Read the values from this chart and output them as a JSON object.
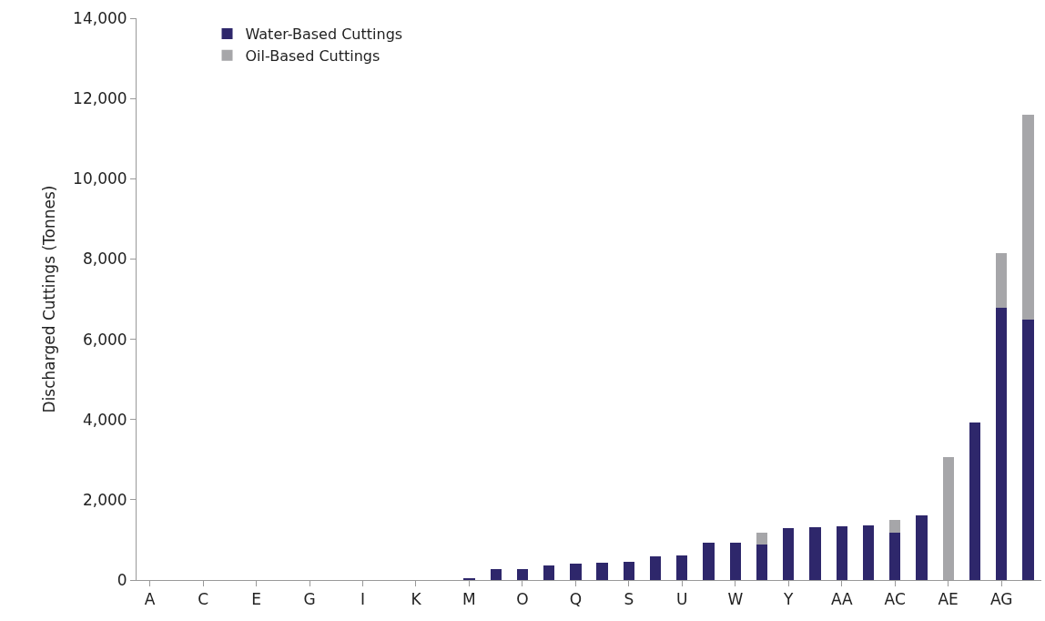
{
  "chart_data": {
    "type": "bar",
    "stacked": true,
    "ylabel": "Discharged Cuttings (Tonnes)",
    "categories": [
      "A",
      null,
      "C",
      null,
      "E",
      null,
      "G",
      null,
      "I",
      null,
      "K",
      null,
      "M",
      null,
      "O",
      null,
      "Q",
      null,
      "S",
      null,
      "U",
      null,
      "W",
      null,
      "Y",
      null,
      "AA",
      null,
      "AC",
      null,
      "AE",
      null,
      "AG",
      null
    ],
    "series": [
      {
        "name": "Water-Based Cuttings",
        "color": "#2e276b",
        "values": [
          0,
          0,
          0,
          0,
          0,
          0,
          0,
          0,
          0,
          0,
          0,
          0,
          40,
          270,
          280,
          360,
          410,
          440,
          450,
          600,
          610,
          930,
          930,
          890,
          1300,
          1320,
          1340,
          1370,
          1170,
          1600,
          0,
          3920,
          6780,
          6490
        ]
      },
      {
        "name": "Oil-Based Cuttings",
        "color": "#a6a6a9",
        "values": [
          0,
          0,
          0,
          0,
          0,
          0,
          0,
          0,
          0,
          0,
          0,
          0,
          0,
          0,
          0,
          0,
          0,
          0,
          0,
          0,
          0,
          0,
          0,
          300,
          0,
          0,
          0,
          0,
          320,
          0,
          3070,
          0,
          1370,
          5100
        ]
      }
    ],
    "ylim": [
      0,
      14000
    ],
    "yticks": [
      {
        "value": 0,
        "label": "0"
      },
      {
        "value": 2000,
        "label": "2,000"
      },
      {
        "value": 4000,
        "label": "4,000"
      },
      {
        "value": 6000,
        "label": "6,000"
      },
      {
        "value": 8000,
        "label": "8,000"
      },
      {
        "value": 10000,
        "label": "10,000"
      },
      {
        "value": 12000,
        "label": "12,000"
      },
      {
        "value": 14000,
        "label": "14,000"
      }
    ],
    "grid": false,
    "legend": "top left"
  }
}
